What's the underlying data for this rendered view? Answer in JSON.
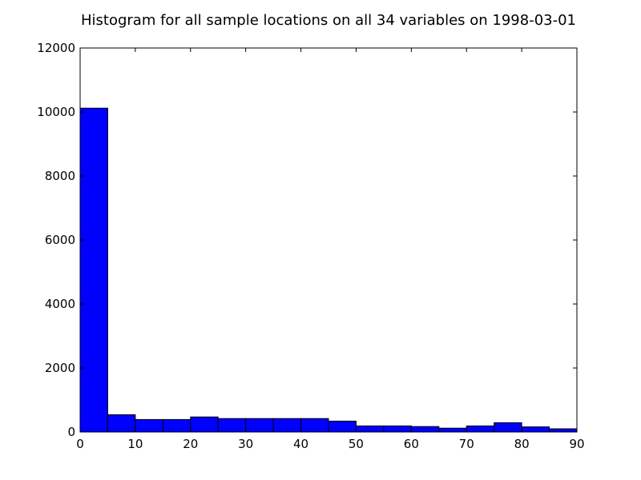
{
  "chart_data": {
    "type": "bar",
    "title": "Histogram for all sample locations on all 34 variables on 1998-03-01",
    "xlabel": "",
    "ylabel": "",
    "bin_edges": [
      0,
      5,
      10,
      15,
      20,
      25,
      30,
      35,
      40,
      45,
      50,
      55,
      60,
      65,
      70,
      75,
      80,
      85,
      90
    ],
    "values": [
      10120,
      540,
      390,
      390,
      470,
      420,
      420,
      420,
      420,
      340,
      190,
      190,
      170,
      120,
      190,
      290,
      160,
      100
    ],
    "xlim": [
      0,
      90
    ],
    "ylim": [
      0,
      12000
    ],
    "x_ticks": [
      0,
      10,
      20,
      30,
      40,
      50,
      60,
      70,
      80,
      90
    ],
    "y_ticks": [
      0,
      2000,
      4000,
      6000,
      8000,
      10000,
      12000
    ],
    "x_tick_labels": [
      "0",
      "10",
      "20",
      "30",
      "40",
      "50",
      "60",
      "70",
      "80",
      "90"
    ],
    "y_tick_labels": [
      "0",
      "2000",
      "4000",
      "6000",
      "8000",
      "10000",
      "12000"
    ],
    "bar_color": "#0000ff",
    "edge_color": "#000000",
    "grid": false,
    "legend": "none"
  }
}
